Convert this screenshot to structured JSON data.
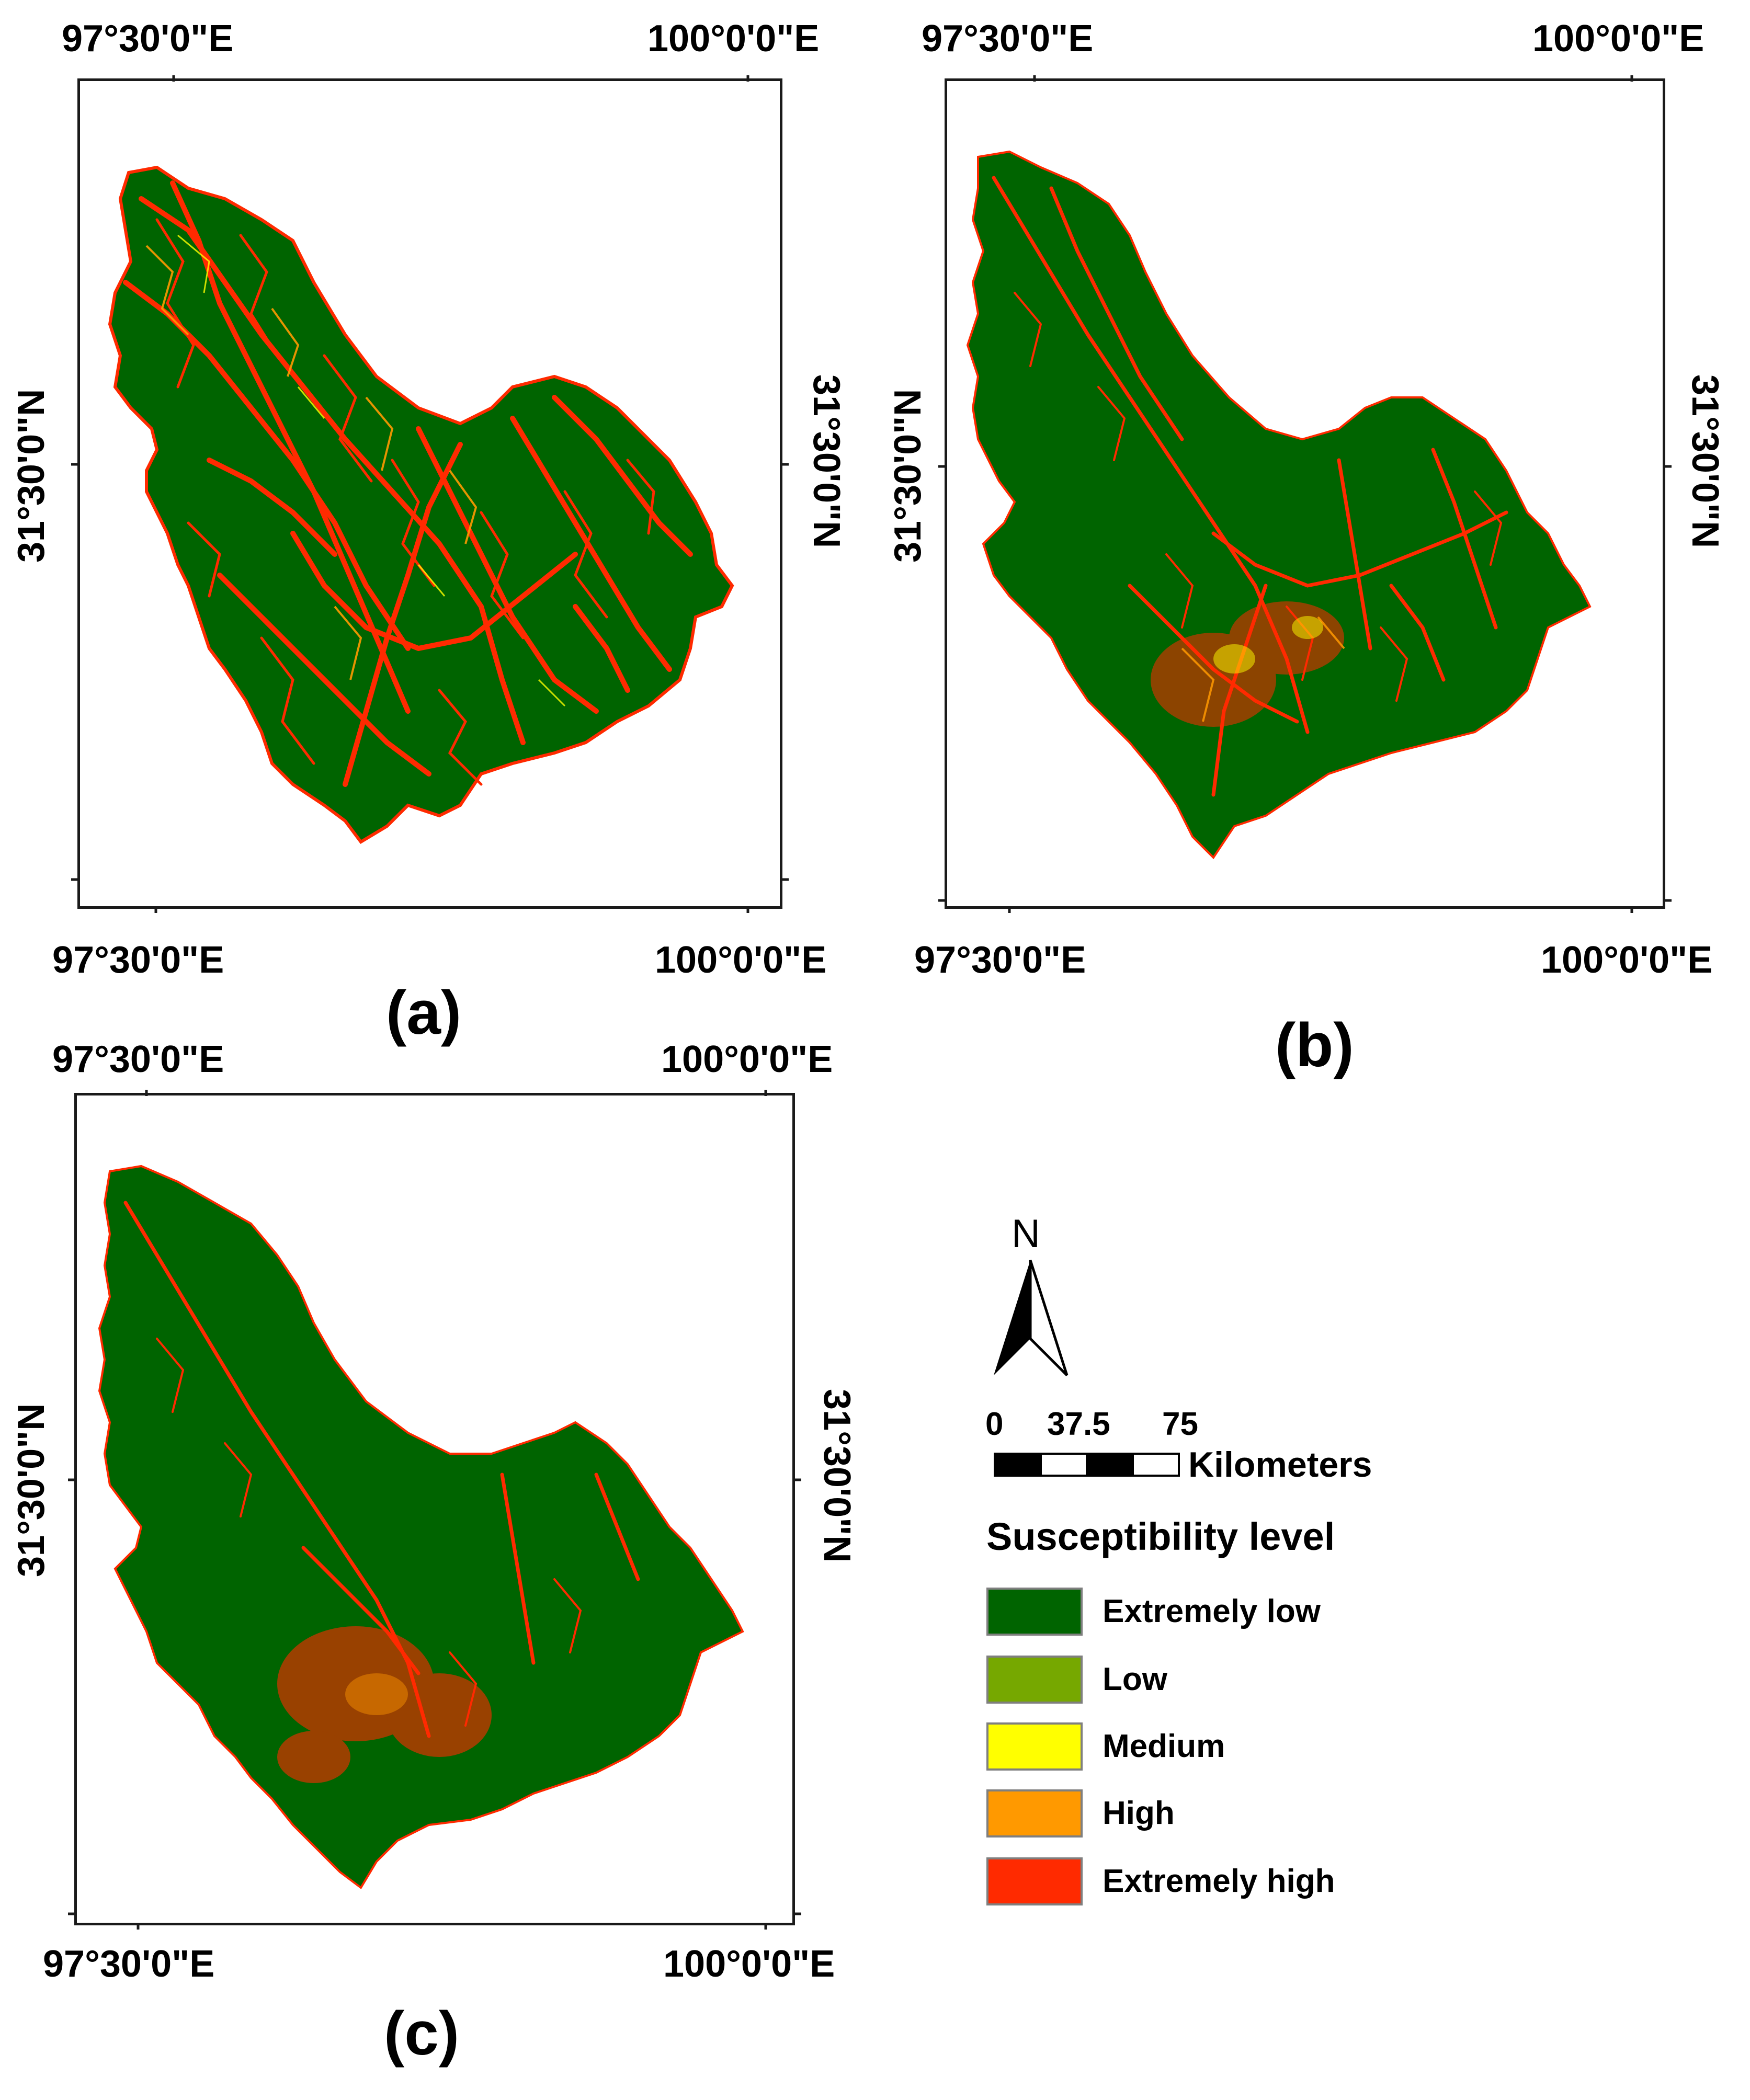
{
  "colors": {
    "extremely_low": "#006400",
    "low": "#76a800",
    "medium": "#ffff00",
    "high": "#ff9900",
    "extremely_high": "#ff2a00",
    "frame": "#1a1a1a"
  },
  "panels": [
    {
      "label": "(a)",
      "top_lon_left": "97°30'0\"E",
      "top_lon_right": "100°0'0\"E",
      "bottom_lon_left": "97°30'0\"E",
      "bottom_lon_right": "100°0'0\"E",
      "lat_left": "31°30'0\"N",
      "lat_right": "31°30'0\"N",
      "susceptibility_pattern": "dense extremely-high network"
    },
    {
      "label": "(b)",
      "top_lon_left": "97°30'0\"E",
      "top_lon_right": "100°0'0\"E",
      "bottom_lon_left": "97°30'0\"E",
      "bottom_lon_right": "100°0'0\"E",
      "lat_left": "31°30'0\"N",
      "lat_right": "31°30'0\"N",
      "susceptibility_pattern": "moderate extremely-high network"
    },
    {
      "label": "(c)",
      "top_lon_left": "97°30'0\"E",
      "top_lon_right": "100°0'0\"E",
      "bottom_lon_left": "97°30'0\"E",
      "bottom_lon_right": "100°0'0\"E",
      "lat_left": "31°30'0\"N",
      "lat_right": "31°30'0\"N",
      "susceptibility_pattern": "sparse extremely-high network"
    }
  ],
  "north_arrow": {
    "label": "N",
    "icon": "north-arrow-icon"
  },
  "scale_bar": {
    "tick_0": "0",
    "tick_mid": "37.5",
    "tick_max": "75",
    "unit": "Kilometers"
  },
  "legend": {
    "title": "Susceptibility level",
    "items": [
      {
        "label": "Extremely low",
        "color": "#006400"
      },
      {
        "label": "Low",
        "color": "#76a800"
      },
      {
        "label": "Medium",
        "color": "#ffff00"
      },
      {
        "label": "High",
        "color": "#ff9900"
      },
      {
        "label": "Extremely high",
        "color": "#ff2a00"
      }
    ]
  }
}
